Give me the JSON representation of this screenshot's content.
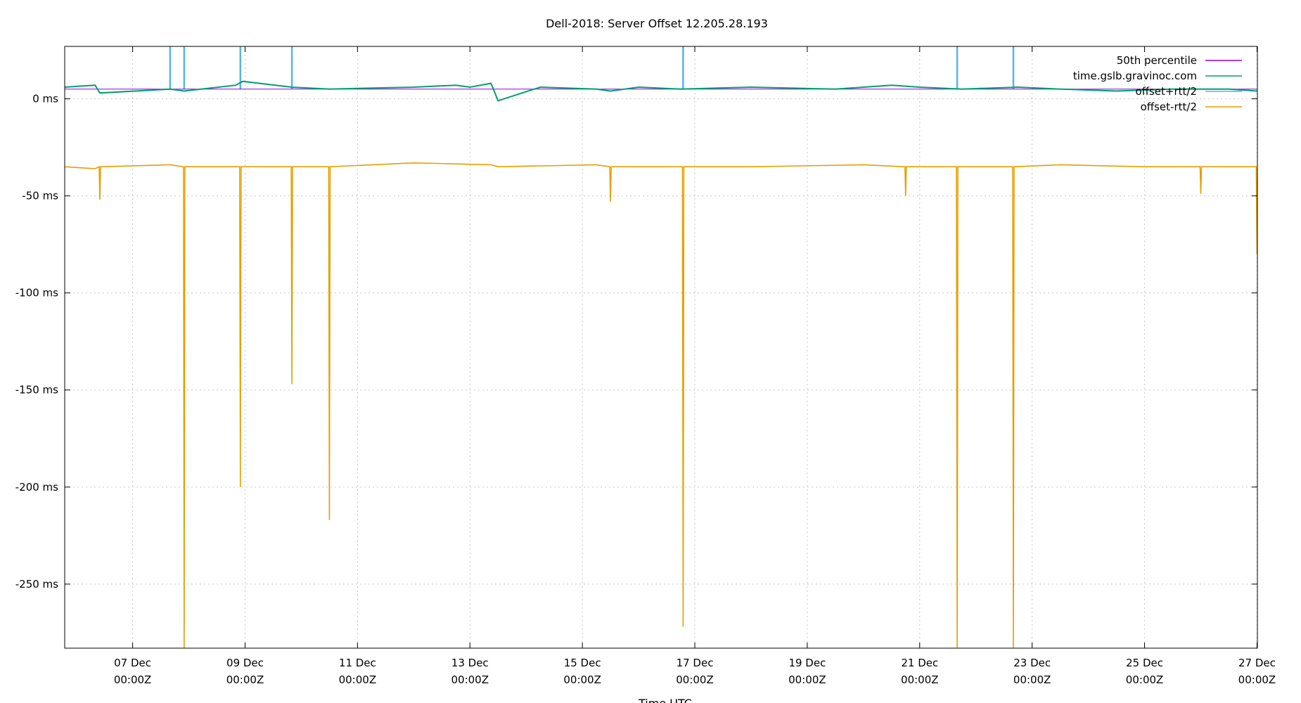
{
  "chart_data": {
    "type": "line",
    "title": "Dell-2018: Server Offset 12.205.28.193",
    "xlabel": "Time UTC",
    "ylabel": "",
    "x_range": [
      "2018-12-05T19:00Z",
      "2018-12-27T00:10Z"
    ],
    "ylim": [
      -283,
      27
    ],
    "y_ticks": [
      {
        "value": 0,
        "label": "0 ms"
      },
      {
        "value": -50,
        "label": "-50 ms"
      },
      {
        "value": -100,
        "label": "-100 ms"
      },
      {
        "value": -150,
        "label": "-150 ms"
      },
      {
        "value": -200,
        "label": "-200 ms"
      },
      {
        "value": -250,
        "label": "-250 ms"
      }
    ],
    "x_ticks": [
      {
        "date": "2018-12-07T00:00Z",
        "line1": "07 Dec",
        "line2": "00:00Z"
      },
      {
        "date": "2018-12-09T00:00Z",
        "line1": "09 Dec",
        "line2": "00:00Z"
      },
      {
        "date": "2018-12-11T00:00Z",
        "line1": "11 Dec",
        "line2": "00:00Z"
      },
      {
        "date": "2018-12-13T00:00Z",
        "line1": "13 Dec",
        "line2": "00:00Z"
      },
      {
        "date": "2018-12-15T00:00Z",
        "line1": "15 Dec",
        "line2": "00:00Z"
      },
      {
        "date": "2018-12-17T00:00Z",
        "line1": "17 Dec",
        "line2": "00:00Z"
      },
      {
        "date": "2018-12-19T00:00Z",
        "line1": "19 Dec",
        "line2": "00:00Z"
      },
      {
        "date": "2018-12-21T00:00Z",
        "line1": "21 Dec",
        "line2": "00:00Z"
      },
      {
        "date": "2018-12-23T00:00Z",
        "line1": "23 Dec",
        "line2": "00:00Z"
      },
      {
        "date": "2018-12-25T00:00Z",
        "line1": "25 Dec",
        "line2": "00:00Z"
      },
      {
        "date": "2018-12-27T00:00Z",
        "line1": "27 Dec",
        "line2": "00:00Z"
      }
    ],
    "grid": true,
    "legend_position": "top-right",
    "series": [
      {
        "name": "50th percentile",
        "color": "#9400d3",
        "x": [
          "2018-12-05T19:00Z",
          "2018-12-27T00:00Z"
        ],
        "y": [
          5,
          5
        ]
      },
      {
        "name": "time.gslb.gravinoc.com",
        "color": "#009e73",
        "x": [
          "2018-12-05T19:00Z",
          "2018-12-06T08:00Z",
          "2018-12-06T10:00Z",
          "2018-12-07T16:00Z",
          "2018-12-07T22:00Z",
          "2018-12-08T20:00Z",
          "2018-12-08T23:00Z",
          "2018-12-09T20:00Z",
          "2018-12-10T12:00Z",
          "2018-12-12T00:00Z",
          "2018-12-12T18:00Z",
          "2018-12-13T00:00Z",
          "2018-12-13T09:00Z",
          "2018-12-13T12:00Z",
          "2018-12-14T06:00Z",
          "2018-12-15T06:00Z",
          "2018-12-15T12:00Z",
          "2018-12-16T00:00Z",
          "2018-12-16T18:00Z",
          "2018-12-18T00:00Z",
          "2018-12-19T12:00Z",
          "2018-12-20T12:00Z",
          "2018-12-21T00:00Z",
          "2018-12-21T18:00Z",
          "2018-12-22T18:00Z",
          "2018-12-23T12:00Z",
          "2018-12-24T12:00Z",
          "2018-12-25T12:00Z",
          "2018-12-26T12:00Z",
          "2018-12-27T00:00Z"
        ],
        "y": [
          6,
          7,
          3,
          5,
          4,
          7,
          9,
          6,
          5,
          6,
          7,
          6,
          8,
          -1,
          6,
          5,
          4,
          6,
          5,
          6,
          5,
          7,
          6,
          5,
          6,
          5,
          4,
          5,
          5,
          4
        ]
      },
      {
        "name": "offset+rtt/2",
        "color": "#56b4e9",
        "x": [
          "2018-12-07T16:00Z",
          "2018-12-07T22:00Z",
          "2018-12-08T22:00Z",
          "2018-12-09T20:00Z",
          "2018-12-16T19:00Z",
          "2018-12-21T16:00Z",
          "2018-12-22T16:00Z"
        ],
        "y": [
          27,
          27,
          27,
          27,
          27,
          27,
          27
        ]
      },
      {
        "name": "offset-rtt/2",
        "color": "#e69f00",
        "x": [
          "2018-12-05T19:00Z",
          "2018-12-06T08:00Z",
          "2018-12-06T10:00Z",
          "2018-12-07T16:00Z",
          "2018-12-07T22:00Z",
          "2018-12-08T22:00Z",
          "2018-12-09T20:00Z",
          "2018-12-10T12:00Z",
          "2018-12-12T00:00Z",
          "2018-12-13T09:00Z",
          "2018-12-13T12:00Z",
          "2018-12-15T06:00Z",
          "2018-12-15T12:00Z",
          "2018-12-16T00:00Z",
          "2018-12-16T19:00Z",
          "2018-12-18T00:00Z",
          "2018-12-20T00:00Z",
          "2018-12-20T18:00Z",
          "2018-12-21T16:00Z",
          "2018-12-22T16:00Z",
          "2018-12-23T12:00Z",
          "2018-12-25T00:00Z",
          "2018-12-26T00:00Z",
          "2018-12-27T00:00Z"
        ],
        "y": [
          -35,
          -36,
          -52,
          -34,
          -283,
          -200,
          -147,
          -217,
          -33,
          -34,
          -35,
          -34,
          -53,
          -35,
          -272,
          -35,
          -34,
          -50,
          -283,
          -283,
          -34,
          -35,
          -49,
          -80
        ]
      }
    ]
  }
}
